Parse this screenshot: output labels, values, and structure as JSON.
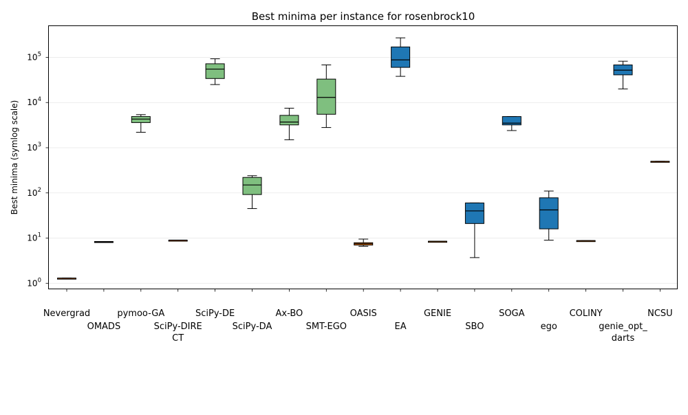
{
  "chart_data": {
    "type": "box",
    "title": "Best minima per instance for rosenbrock10",
    "xlabel": "",
    "ylabel": "Best minima (symlog scale)",
    "y_scale": "symlog",
    "ylim": [
      0.75,
      500000
    ],
    "yticks": [
      {
        "value": 1,
        "base": "10",
        "exp": "0"
      },
      {
        "value": 10,
        "base": "10",
        "exp": "1"
      },
      {
        "value": 100,
        "base": "10",
        "exp": "2"
      },
      {
        "value": 1000,
        "base": "10",
        "exp": "3"
      },
      {
        "value": 10000,
        "base": "10",
        "exp": "4"
      },
      {
        "value": 100000,
        "base": "10",
        "exp": "5"
      }
    ],
    "grid": "horizontal",
    "categories": [
      {
        "label": [
          "Nevergrad"
        ],
        "row": 0,
        "color": "#ff7f0e",
        "whisker_low": 1.3,
        "q1": 1.3,
        "median": 1.3,
        "q3": 1.3,
        "whisker_high": 1.3
      },
      {
        "label": [
          "OMADS"
        ],
        "row": 1,
        "color": "#ff7f0e",
        "whisker_low": 8.2,
        "q1": 8.2,
        "median": 8.3,
        "q3": 8.4,
        "whisker_high": 8.4
      },
      {
        "label": [
          "pymoo-GA"
        ],
        "row": 0,
        "color": "#7fbf7f",
        "whisker_low": 2200,
        "q1": 3600,
        "median": 4300,
        "q3": 4900,
        "whisker_high": 5400
      },
      {
        "label": [
          "SciPy-DIRE",
          "CT"
        ],
        "row": 1,
        "color": "#ff7f0e",
        "whisker_low": 9.0,
        "q1": 9.0,
        "median": 9.0,
        "q3": 9.0,
        "whisker_high": 9.0
      },
      {
        "label": [
          "SciPy-DE"
        ],
        "row": 0,
        "color": "#7fbf7f",
        "whisker_low": 25000,
        "q1": 34000,
        "median": 55000,
        "q3": 72000,
        "whisker_high": 93000
      },
      {
        "label": [
          "SciPy-DA"
        ],
        "row": 1,
        "color": "#7fbf7f",
        "whisker_low": 45,
        "q1": 92,
        "median": 150,
        "q3": 220,
        "whisker_high": 240
      },
      {
        "label": [
          "Ax-BO"
        ],
        "row": 0,
        "color": "#7fbf7f",
        "whisker_low": 1500,
        "q1": 3200,
        "median": 3700,
        "q3": 5200,
        "whisker_high": 7500
      },
      {
        "label": [
          "SMT-EGO"
        ],
        "row": 1,
        "color": "#7fbf7f",
        "whisker_low": 2800,
        "q1": 5500,
        "median": 13000,
        "q3": 33000,
        "whisker_high": 68000
      },
      {
        "label": [
          "OASIS"
        ],
        "row": 0,
        "color": "#ff7f0e",
        "whisker_low": 6.6,
        "q1": 7.0,
        "median": 7.5,
        "q3": 7.9,
        "whisker_high": 9.5
      },
      {
        "label": [
          "EA"
        ],
        "row": 1,
        "color": "#1f77b4",
        "whisker_low": 38000,
        "q1": 60000,
        "median": 88000,
        "q3": 170000,
        "whisker_high": 270000
      },
      {
        "label": [
          "GENIE"
        ],
        "row": 0,
        "color": "#ff7f0e",
        "whisker_low": 8.5,
        "q1": 8.5,
        "median": 8.5,
        "q3": 8.5,
        "whisker_high": 8.5
      },
      {
        "label": [
          "SBO"
        ],
        "row": 1,
        "color": "#1f77b4",
        "whisker_low": 3.7,
        "q1": 21,
        "median": 40,
        "q3": 60,
        "whisker_high": 60
      },
      {
        "label": [
          "SOGA"
        ],
        "row": 0,
        "color": "#1f77b4",
        "whisker_low": 2400,
        "q1": 3200,
        "median": 3500,
        "q3": 4900,
        "whisker_high": 4900
      },
      {
        "label": [
          "ego"
        ],
        "row": 1,
        "color": "#1f77b4",
        "whisker_low": 9.0,
        "q1": 16,
        "median": 42,
        "q3": 78,
        "whisker_high": 110
      },
      {
        "label": [
          "COLINY"
        ],
        "row": 0,
        "color": "#ff7f0e",
        "whisker_low": 8.8,
        "q1": 8.8,
        "median": 8.8,
        "q3": 8.8,
        "whisker_high": 8.8
      },
      {
        "label": [
          "genie_opt_",
          "darts"
        ],
        "row": 1,
        "color": "#1f77b4",
        "whisker_low": 20000,
        "q1": 41000,
        "median": 52000,
        "q3": 68000,
        "whisker_high": 82000
      },
      {
        "label": [
          "NCSU"
        ],
        "row": 0,
        "color": "#ff7f0e",
        "whisker_low": 500,
        "q1": 500,
        "median": 500,
        "q3": 500,
        "whisker_high": 500
      }
    ]
  }
}
